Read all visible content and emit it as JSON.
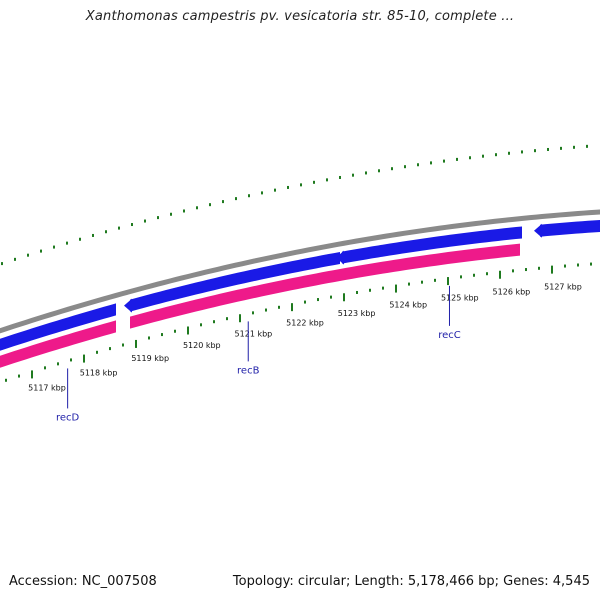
{
  "title": "Xanthomonas campestris pv. vesicatoria str. 85-10, complete ...",
  "footer": {
    "accession": "Accession: NC_007508",
    "info": "Topology: circular; Length: 5,178,466 bp; Genes: 4,545"
  },
  "colors": {
    "backbone": "#8a8a8a",
    "forward_cds": "#1a1ae6",
    "reverse_cds": "#ee1a8a",
    "gc_skew_ticks": "#1f7a1f",
    "gene_label": "#1f1fa8"
  },
  "axis": {
    "ticks": [
      "5117 kbp",
      "5118 kbp",
      "5119 kbp",
      "5120 kbp",
      "5121 kbp",
      "5122 kbp",
      "5123 kbp",
      "5124 kbp",
      "5125 kbp",
      "5126 kbp",
      "5127 kbp"
    ]
  },
  "genes": [
    {
      "name": "recD",
      "position_kbp": 5117.4
    },
    {
      "name": "recB",
      "position_kbp": 5120.9
    },
    {
      "name": "recC",
      "position_kbp": 5124.8
    }
  ]
}
